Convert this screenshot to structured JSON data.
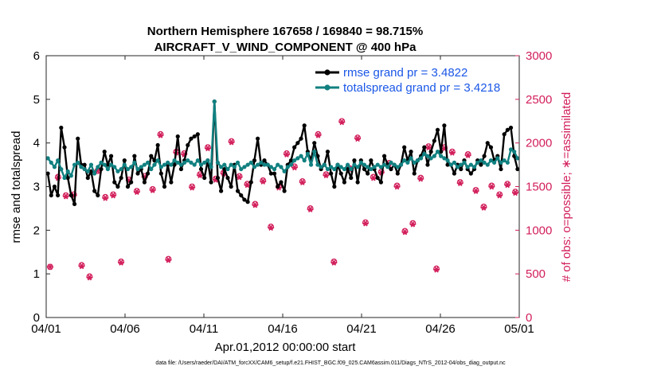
{
  "chart_data": {
    "type": "line",
    "title_line1": "Northern Hemisphere 167658 / 169840 = 98.715%",
    "title_line2": "AIRCRAFT_V_WIND_COMPONENT @ 400 hPa",
    "xlabel": "Apr.01,2012 00:00:00 start",
    "ylabel_left": "rmse and totalspread",
    "ylabel_right": "# of obs: o=possible; ∗=assimilated",
    "footnote": "data file: /Users/raeder/DAI/ATM_forcXX/CAM6_setup/f.e21.FHIST_BGC.f09_025.CAM6assim.011/Diags_NTrS_2012-04/obs_diag_output.nc",
    "xlim": [
      0,
      30
    ],
    "ylim_left": [
      0,
      6
    ],
    "ylim_right": [
      0,
      3000
    ],
    "x_ticks": [
      0,
      5,
      10,
      15,
      20,
      25,
      30
    ],
    "x_tick_labels": [
      "04/01",
      "04/06",
      "04/11",
      "04/16",
      "04/21",
      "04/26",
      "05/01"
    ],
    "y_left_ticks": [
      "0",
      "1",
      "2",
      "3",
      "4",
      "5",
      "6"
    ],
    "y_right_ticks": [
      "0",
      "500",
      "1000",
      "1500",
      "2000",
      "2500",
      "3000"
    ],
    "colors": {
      "rmse": "#000000",
      "spread": "#118080",
      "obs": "#d21e5a",
      "legend_text": "#1a57e6"
    },
    "series": [
      {
        "name": "rmse grand pr = 3.4822",
        "key": "rmse",
        "values": [
          3.3,
          2.8,
          3.0,
          2.8,
          4.35,
          3.9,
          3.2,
          2.8,
          2.6,
          4.1,
          3.5,
          3.5,
          3.2,
          3.35,
          2.9,
          2.8,
          3.4,
          3.8,
          3.5,
          3.7,
          3.1,
          3.0,
          3.2,
          3.6,
          3.0,
          3.1,
          3.7,
          3.3,
          3.4,
          3.1,
          3.3,
          3.7,
          3.6,
          3.95,
          3.3,
          3.0,
          3.5,
          3.1,
          3.5,
          4.15,
          3.4,
          3.6,
          3.95,
          4.1,
          4.15,
          4.2,
          3.4,
          3.2,
          3.6,
          3.1,
          4.95,
          3.2,
          2.9,
          3.4,
          3.2,
          3.0,
          3.5,
          2.9,
          2.8,
          2.7,
          2.65,
          3.1,
          3.6,
          4.1,
          3.5,
          3.6,
          3.5,
          3.3,
          3.3,
          3.0,
          3.1,
          2.9,
          3.5,
          3.6,
          3.9,
          4.0,
          4.1,
          4.4,
          3.8,
          3.6,
          4.0,
          3.7,
          3.4,
          3.5,
          3.8,
          3.3,
          3.0,
          3.5,
          3.3,
          3.1,
          3.4,
          3.2,
          3.6,
          3.1,
          3.6,
          3.4,
          3.3,
          3.6,
          3.4,
          3.2,
          3.1,
          3.7,
          3.5,
          3.4,
          3.5,
          3.3,
          3.5,
          3.9,
          3.6,
          3.8,
          3.3,
          3.6,
          3.7,
          3.9,
          3.5,
          3.8,
          4.05,
          4.3,
          3.8,
          4.4,
          3.5,
          3.5,
          3.3,
          3.5,
          3.4,
          3.6,
          3.4,
          3.3,
          3.4,
          3.6,
          3.5,
          3.7,
          4.0,
          3.9,
          3.6,
          3.7,
          3.4,
          4.2,
          4.3,
          4.35,
          3.7,
          3.4
        ]
      },
      {
        "name": "totalspread grand pr = 3.4218",
        "key": "spread",
        "values": [
          3.65,
          3.55,
          3.45,
          3.6,
          3.4,
          3.2,
          3.35,
          3.25,
          3.5,
          3.55,
          3.45,
          3.4,
          3.35,
          3.5,
          3.3,
          3.45,
          3.55,
          3.5,
          3.4,
          3.5,
          3.45,
          3.35,
          3.4,
          3.5,
          3.4,
          3.45,
          3.55,
          3.4,
          3.45,
          3.5,
          3.55,
          3.4,
          3.5,
          3.6,
          3.45,
          3.5,
          3.55,
          3.5,
          3.6,
          3.55,
          3.5,
          3.55,
          3.6,
          3.55,
          3.5,
          3.6,
          3.5,
          3.55,
          3.6,
          3.45,
          4.95,
          3.55,
          3.45,
          3.5,
          3.4,
          3.5,
          3.45,
          3.55,
          3.4,
          3.45,
          3.5,
          3.55,
          3.45,
          3.5,
          3.55,
          3.5,
          3.5,
          3.45,
          3.4,
          3.5,
          3.45,
          3.35,
          3.45,
          3.5,
          3.6,
          3.65,
          3.7,
          3.6,
          3.75,
          3.5,
          3.8,
          3.5,
          3.45,
          3.5,
          3.4,
          3.45,
          3.4,
          3.5,
          3.45,
          3.4,
          3.5,
          3.4,
          3.5,
          3.45,
          3.55,
          3.5,
          3.45,
          3.4,
          3.45,
          3.5,
          3.45,
          3.5,
          3.45,
          3.55,
          3.5,
          3.45,
          3.5,
          3.6,
          3.55,
          3.65,
          3.55,
          3.6,
          3.65,
          3.75,
          3.7,
          3.65,
          3.7,
          3.8,
          3.7,
          3.65,
          3.6,
          3.5,
          3.55,
          3.45,
          3.5,
          3.55,
          3.45,
          3.5,
          3.45,
          3.55,
          3.6,
          3.55,
          3.5,
          3.6,
          3.55,
          3.65,
          3.55,
          3.6,
          3.55,
          3.85,
          3.8,
          3.65
        ]
      }
    ],
    "obs_possible_times": [
      0.25,
      0.75,
      1.25,
      1.75,
      2.25,
      2.75,
      3.25,
      3.75,
      4.25,
      4.75,
      5.25,
      5.75,
      6.25,
      6.75,
      7.25,
      7.75,
      8.25,
      8.75,
      9.25,
      9.75,
      10.25,
      10.75,
      11.25,
      11.75,
      12.25,
      12.75,
      13.25,
      13.75,
      14.25,
      14.75,
      15.25,
      15.75,
      16.25,
      16.75,
      17.25,
      17.75,
      18.25,
      18.75,
      19.25,
      19.75,
      20.25,
      20.75,
      21.25,
      21.75,
      22.25,
      22.75,
      23.25,
      23.75,
      24.25,
      24.75,
      25.25,
      25.75,
      26.25,
      26.75,
      27.25,
      27.75,
      28.25,
      28.75,
      29.25,
      29.75
    ],
    "obs_possible": [
      580,
      1610,
      1400,
      1410,
      600,
      470,
      1680,
      1380,
      1410,
      640,
      1580,
      1450,
      1620,
      1470,
      2100,
      670,
      1900,
      1880,
      1500,
      1640,
      1950,
      1590,
      1660,
      2020,
      1620,
      1530,
      1300,
      1570,
      1040,
      1500,
      1880,
      1730,
      1560,
      1250,
      2100,
      1640,
      640,
      2250,
      1710,
      2060,
      1090,
      1610,
      1670,
      1770,
      1510,
      990,
      1080,
      1600,
      1960,
      560,
      1950,
      1900,
      1550,
      1870,
      1460,
      1270,
      1510,
      1410,
      1530,
      1440
    ],
    "obs_assim": [
      580,
      1600,
      1390,
      1400,
      590,
      460,
      1680,
      1370,
      1400,
      630,
      1570,
      1440,
      1610,
      1460,
      2090,
      660,
      1890,
      1870,
      1490,
      1630,
      1940,
      1580,
      1650,
      2010,
      1610,
      1520,
      1290,
      1560,
      1030,
      1490,
      1870,
      1720,
      1550,
      1240,
      2090,
      1630,
      630,
      2240,
      1700,
      2050,
      1080,
      1600,
      1660,
      1760,
      1500,
      980,
      1070,
      1590,
      1950,
      550,
      1940,
      1890,
      1540,
      1860,
      1450,
      1260,
      1500,
      1400,
      1520,
      1430
    ]
  }
}
